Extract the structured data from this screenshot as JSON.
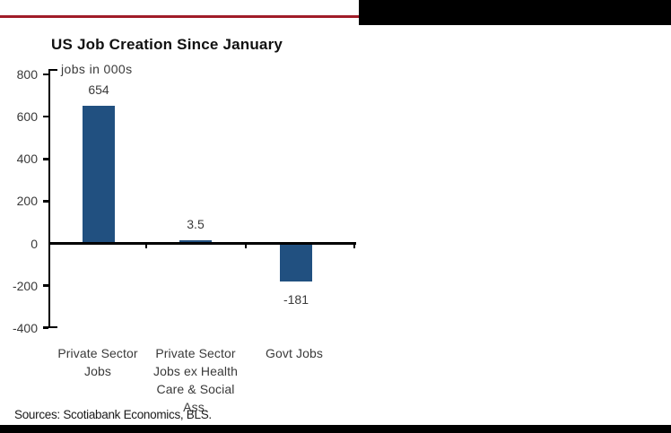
{
  "page": {
    "decorations": {
      "red_rule_color": "#A01C28",
      "black_block_color": "#000000"
    }
  },
  "chart_data": {
    "type": "bar",
    "title": "US Job Creation Since January",
    "unit_label": "jobs in 000s",
    "categories": [
      {
        "lines": [
          "Private Sector",
          "Jobs"
        ]
      },
      {
        "lines": [
          "Private Sector",
          "Jobs ex Health",
          "Care & Social",
          "Ass."
        ]
      },
      {
        "lines": [
          "Govt Jobs"
        ]
      }
    ],
    "values": [
      654,
      3.5,
      -181
    ],
    "value_labels": [
      "654",
      "3.5",
      "-181"
    ],
    "ylim": [
      -400,
      800
    ],
    "yticks": [
      800,
      600,
      400,
      200,
      0,
      -200,
      -400
    ],
    "ytick_labels": [
      "800",
      "600",
      "400",
      "200",
      "0",
      "-200",
      "-400"
    ],
    "bar_color": "#215080",
    "axis_color": "#000000",
    "label_color": "#3a3a3a",
    "grid": false,
    "legend": "none"
  },
  "footer": {
    "sources": "Sources: Scotiabank Economics, BLS."
  }
}
